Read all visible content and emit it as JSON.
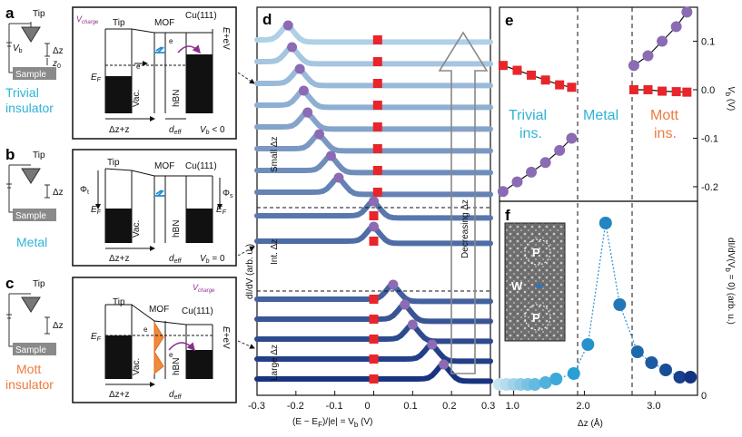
{
  "panels": {
    "a": {
      "label": "a",
      "tip": "Tip",
      "sample": "Sample",
      "vb": "V",
      "vb_sub": "b",
      "dz": "Δz",
      "z0": "z",
      "z0_sub": "0",
      "state_line1": "Trivial",
      "state_line2": "insulator",
      "vcharge": "V",
      "vcharge_sub": "charge",
      "col_tip": "Tip",
      "col_mof": "MOF",
      "col_cu": "Cu(111)",
      "ef": "E",
      "ef_sub": "F",
      "vac": "Vac.",
      "hbn": "hBN",
      "e_label": "e",
      "right_label": "E",
      "right_label_rest": "+eV",
      "dz_z0": "Δz+z",
      "deff": "d",
      "deff_sub": "eff",
      "bias": "V",
      "bias_rest": "< 0"
    },
    "b": {
      "label": "b",
      "tip": "Tip",
      "sample": "Sample",
      "state_line1": "Metal",
      "col_tip": "Tip",
      "col_mof": "MOF",
      "col_cu": "Cu(111)",
      "phi_t": "Φ",
      "phi_t_sub": "t",
      "phi_s": "Φ",
      "phi_s_sub": "s",
      "ef": "E",
      "ef_sub": "F",
      "vac": "Vac.",
      "hbn": "hBN",
      "dz_z0": "Δz+z",
      "deff": "d",
      "deff_sub": "eff",
      "bias": "V",
      "bias_rest": "= 0"
    },
    "c": {
      "label": "c",
      "tip": "Tip",
      "sample": "Sample",
      "state_line1": "Mott",
      "state_line2": "insulator",
      "vcharge": "V",
      "vcharge_sub": "charge",
      "col_tip": "Tip",
      "col_mof": "MOF",
      "col_cu": "Cu(111)",
      "ef": "E",
      "ef_sub": "F",
      "vac": "Vac.",
      "hbn": "hBN",
      "e_label": "e",
      "right_label": "E",
      "right_label_rest": "+eV",
      "dz_z0": "Δz+z",
      "deff": "d",
      "deff_sub": "eff"
    },
    "d": {
      "label": "d",
      "ylabel": "dI/dV (arb. u.)",
      "xlabel": "(E − E",
      "xlabel_sub": "F",
      "xlabel_rest": ")/|e| = V",
      "xlabel_sub2": "b",
      "xlabel_end": " (V)",
      "xticks": [
        "-0.3",
        "-0.2",
        "-0.1",
        "0",
        "0.1",
        "0.2",
        "0.3"
      ],
      "group_small": "Small Δz",
      "group_int": "Int. Δz",
      "group_large": "Large Δz",
      "arrow_label": "Decreasing Δz"
    },
    "e": {
      "label": "e",
      "phase_trivial_1": "Trivial",
      "phase_trivial_2": "ins.",
      "phase_metal": "Metal",
      "phase_mott_1": "Mott",
      "phase_mott_2": "ins.",
      "ylabel": "V",
      "ylabel_sub": "b",
      "ylabel_rest": " (V)",
      "yticks": [
        "0.1",
        "0.0",
        "-0.1",
        "-0.2"
      ]
    },
    "f": {
      "label": "f",
      "ylabel": "dI/dV(V",
      "ylabel_sub": "b",
      "ylabel_rest": " = 0) (arb. u.)",
      "xlabel": "Δz  (Å)",
      "xticks": [
        "1.0",
        "2.0",
        "3.0"
      ],
      "yticks": [
        "0"
      ],
      "inset_p": "P",
      "inset_w": "W"
    }
  },
  "colors": {
    "trivial": "#2fb3d6",
    "metal": "#2fb3d6",
    "mott": "#ef7a3d",
    "vcharge": "#8e2d8e",
    "marker_square": "#e8252a",
    "marker_circle": "#8b6bb3",
    "accent_blue": "#1f8fd0",
    "accent_orange": "#f08a3c"
  },
  "chart_data": [
    {
      "id": "d",
      "type": "line",
      "x_range": [
        -0.3,
        0.3
      ],
      "description_source": "spectra stacked vertically",
      "series": [
        {
          "peak_x": -0.22,
          "square_x": 0.01
        },
        {
          "peak_x": -0.21,
          "square_x": 0.01
        },
        {
          "peak_x": -0.19,
          "square_x": 0.01
        },
        {
          "peak_x": -0.18,
          "square_x": 0.01
        },
        {
          "peak_x": -0.17,
          "square_x": 0.01
        },
        {
          "peak_x": -0.14,
          "square_x": 0.01
        },
        {
          "peak_x": -0.11,
          "square_x": 0.01
        },
        {
          "peak_x": -0.09,
          "square_x": 0.01
        },
        {
          "peak_x": 0.0,
          "square_x": 0.0
        },
        {
          "peak_x": 0.0,
          "square_x": 0.0
        },
        {
          "peak_x": 0.05,
          "square_x": 0.0
        },
        {
          "peak_x": 0.08,
          "square_x": 0.0
        },
        {
          "peak_x": 0.1,
          "square_x": 0.0
        },
        {
          "peak_x": 0.15,
          "square_x": 0.0
        },
        {
          "peak_x": 0.18,
          "square_x": 0.0
        }
      ]
    },
    {
      "id": "e",
      "type": "scatter",
      "ylim": [
        -0.23,
        0.17
      ],
      "x": [
        0.85,
        1.05,
        1.25,
        1.45,
        1.65,
        1.82,
        2.7,
        2.9,
        3.1,
        3.3,
        3.45
      ],
      "trivial_squares": [
        0.05,
        0.04,
        0.03,
        0.02,
        0.01,
        0.005
      ],
      "trivial_circles": [
        -0.21,
        -0.19,
        -0.17,
        -0.15,
        -0.125,
        -0.1
      ],
      "mott_squares": [
        0.0,
        0.0,
        -0.003,
        -0.004,
        -0.005
      ],
      "mott_circles": [
        0.05,
        0.07,
        0.1,
        0.13,
        0.16
      ]
    },
    {
      "id": "f",
      "type": "scatter",
      "xlim": [
        0.8,
        3.6
      ],
      "x": [
        0.8,
        0.9,
        1.0,
        1.1,
        1.2,
        1.3,
        1.45,
        1.6,
        1.85,
        2.05,
        2.3,
        2.5,
        2.75,
        2.95,
        3.15,
        3.35,
        3.5
      ],
      "values": [
        0.06,
        0.06,
        0.06,
        0.06,
        0.06,
        0.06,
        0.07,
        0.09,
        0.12,
        0.28,
        0.95,
        0.5,
        0.24,
        0.18,
        0.14,
        0.1,
        0.1
      ]
    }
  ]
}
